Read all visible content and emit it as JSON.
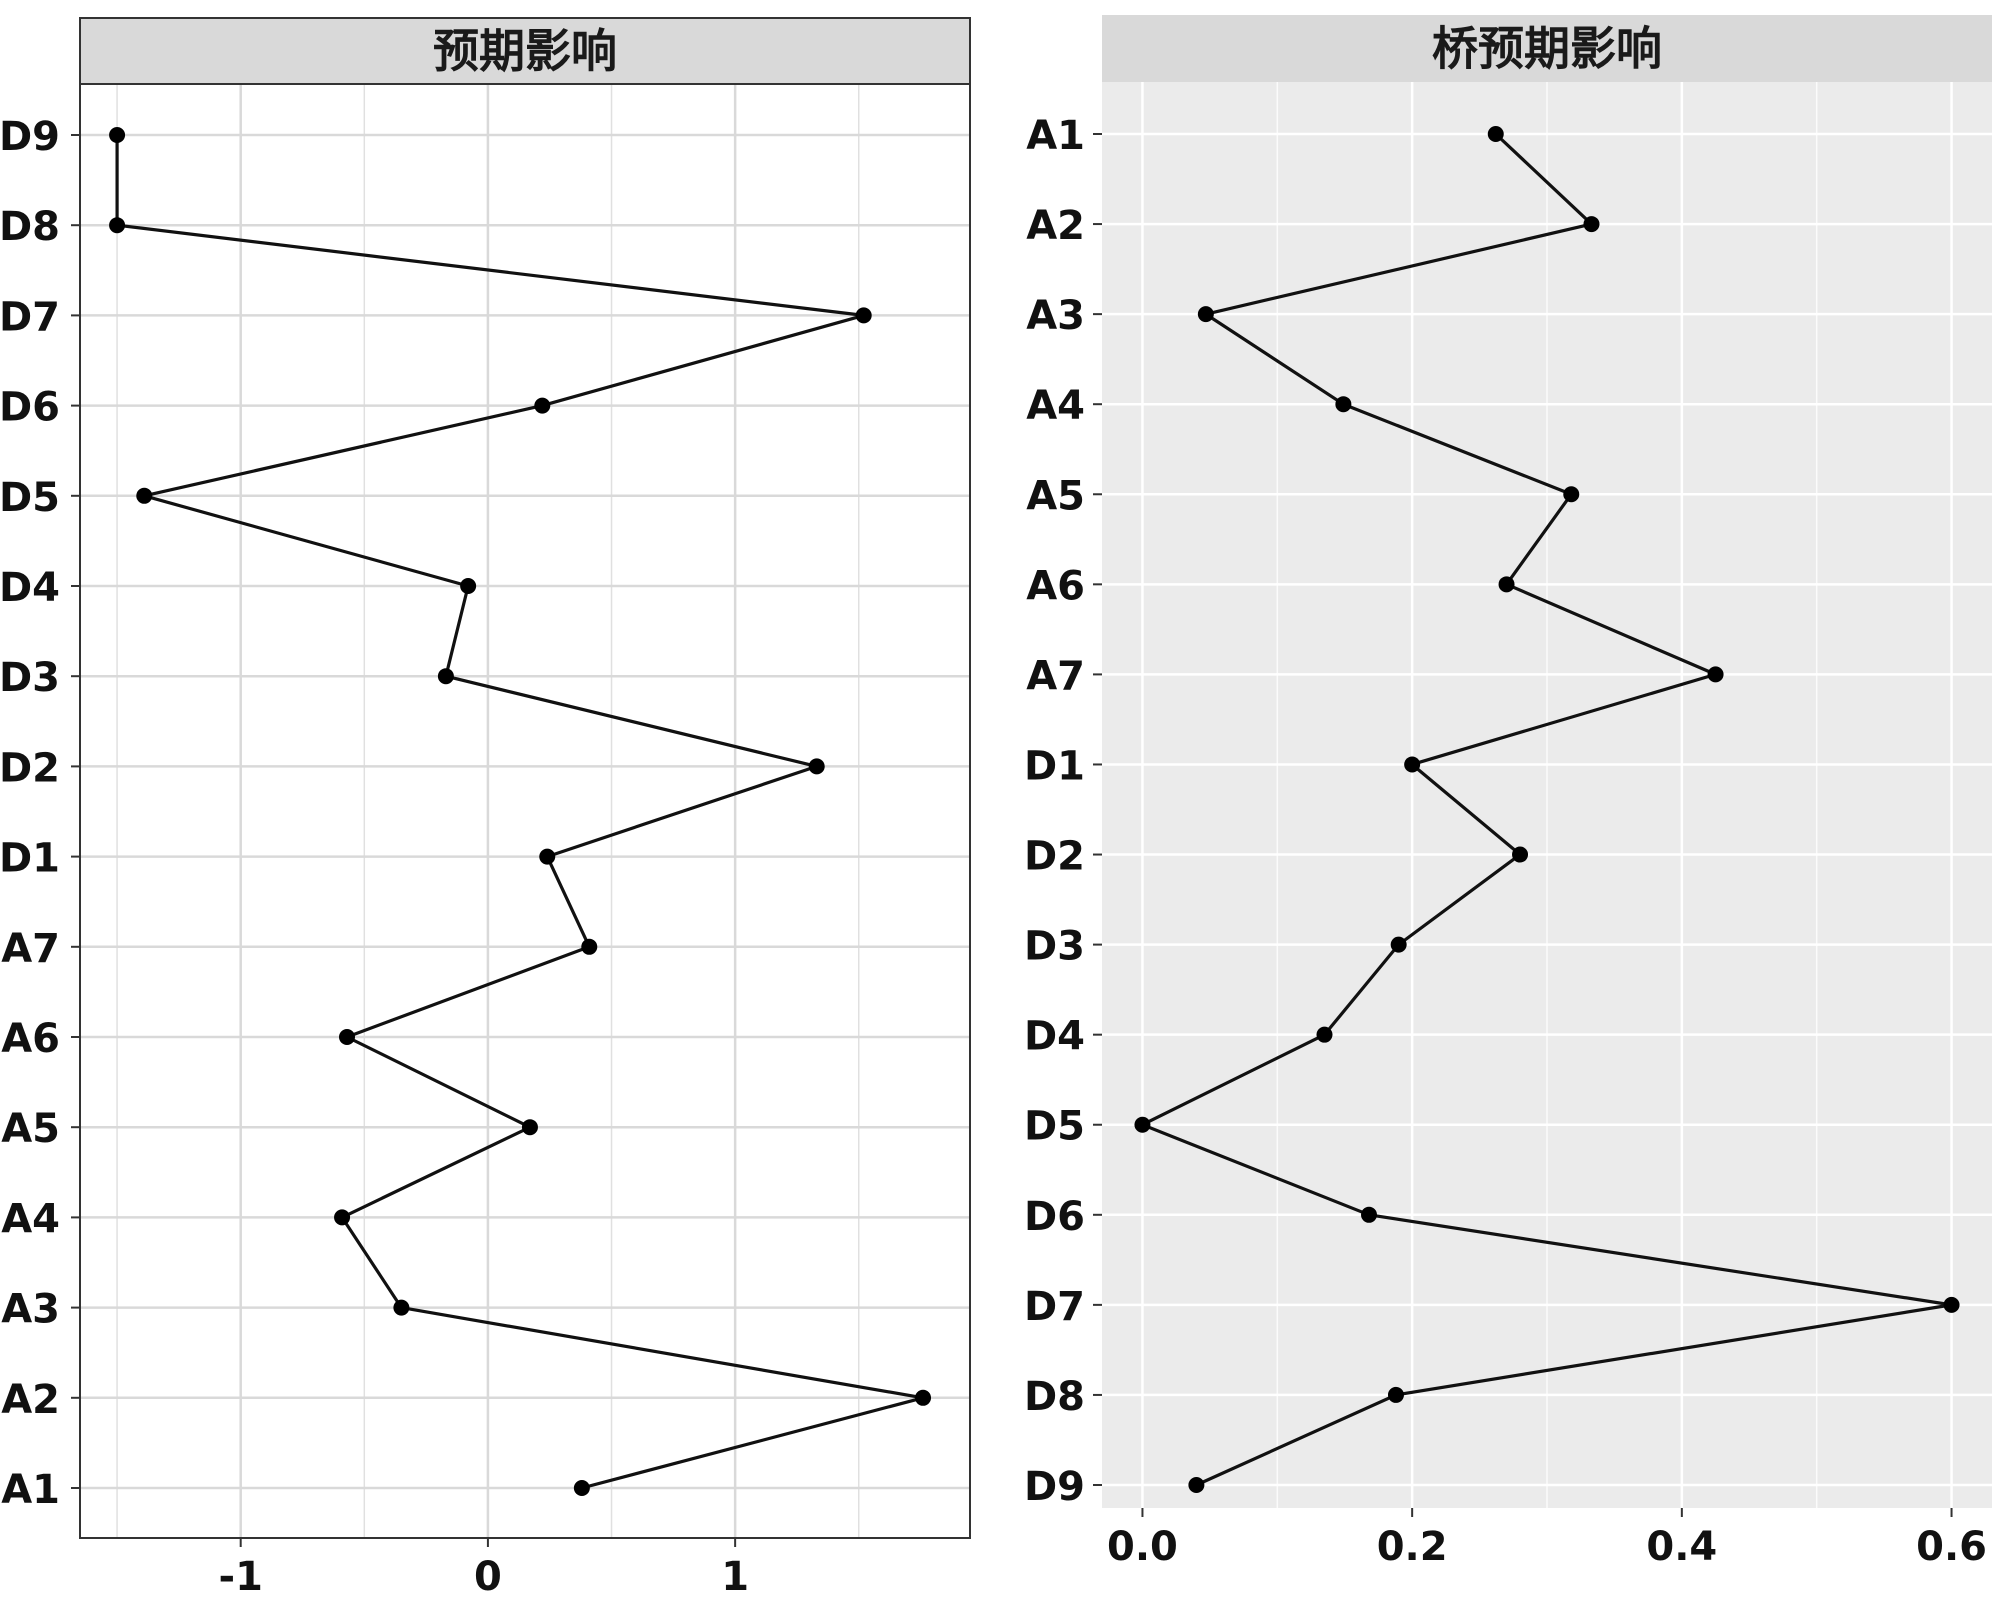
{
  "chart_data": [
    {
      "type": "line",
      "title": "预期影响",
      "orientation": "horizontal-values",
      "categories": [
        "A1",
        "A2",
        "A3",
        "A4",
        "A5",
        "A6",
        "A7",
        "D1",
        "D2",
        "D3",
        "D4",
        "D5",
        "D6",
        "D7",
        "D8",
        "D9"
      ],
      "values": [
        0.38,
        1.76,
        -0.35,
        -0.59,
        0.17,
        -0.57,
        0.41,
        0.24,
        1.33,
        -0.17,
        -0.08,
        -1.39,
        0.22,
        1.52,
        -1.5,
        -1.5
      ],
      "xticks": [
        "-1",
        "0",
        "1"
      ],
      "xtick_values": [
        -1,
        0,
        1
      ],
      "xlim": [
        -1.65,
        1.95
      ],
      "category_order_top_to_bottom": [
        "D9",
        "D8",
        "D7",
        "D6",
        "D5",
        "D4",
        "D3",
        "D2",
        "D1",
        "A7",
        "A6",
        "A5",
        "A4",
        "A3",
        "A2",
        "A1"
      ],
      "background": "#ffffff",
      "grid": true,
      "grid_color": "#d9d9d9",
      "strip_color": "#d9d9d9",
      "panel_border": true
    },
    {
      "type": "line",
      "title": "桥预期影响",
      "orientation": "horizontal-values",
      "categories": [
        "A1",
        "A2",
        "A3",
        "A4",
        "A5",
        "A6",
        "A7",
        "D1",
        "D2",
        "D3",
        "D4",
        "D5",
        "D6",
        "D7",
        "D8",
        "D9"
      ],
      "values": [
        0.262,
        0.333,
        0.047,
        0.149,
        0.318,
        0.27,
        0.425,
        0.2,
        0.28,
        0.19,
        0.135,
        0.0,
        0.168,
        0.6,
        0.188,
        0.04
      ],
      "xticks": [
        "0.0",
        "0.2",
        "0.4",
        "0.6"
      ],
      "xtick_values": [
        0,
        0.2,
        0.4,
        0.6
      ],
      "xlim": [
        -0.03,
        0.63
      ],
      "category_order_top_to_bottom": [
        "A1",
        "A2",
        "A3",
        "A4",
        "A5",
        "A6",
        "A7",
        "D1",
        "D2",
        "D3",
        "D4",
        "D5",
        "D6",
        "D7",
        "D8",
        "D9"
      ],
      "background": "#ebebeb",
      "grid": true,
      "grid_color": "#ffffff",
      "strip_color": "#d9d9d9",
      "panel_border": false
    }
  ],
  "colors": {
    "line": "#111111",
    "point": "#000000",
    "axis_text": "#111111"
  }
}
